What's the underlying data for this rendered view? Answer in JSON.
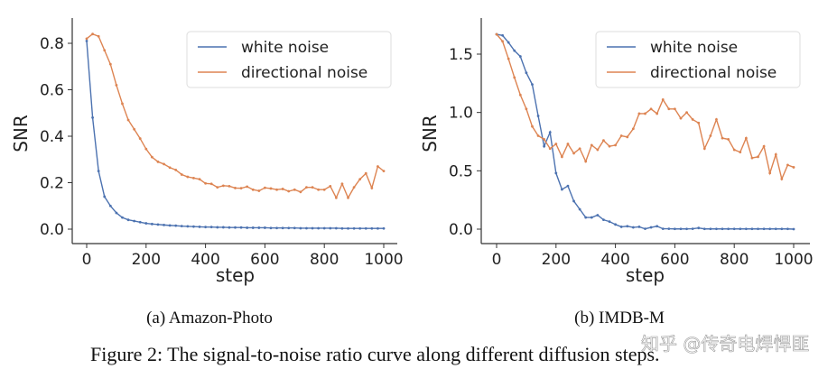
{
  "chart_data": [
    {
      "type": "line",
      "subcaption": "(a) Amazon-Photo",
      "xlabel": "step",
      "ylabel": "SNR",
      "xlim": [
        0,
        1000
      ],
      "ylim": [
        0,
        0.85
      ],
      "xticks": [
        "0",
        "200",
        "400",
        "600",
        "800",
        "1000"
      ],
      "yticks": [
        "0.0",
        "0.2",
        "0.4",
        "0.6",
        "0.8"
      ],
      "legend_position": "top-right",
      "x_step": 20,
      "series": [
        {
          "name": "white noise",
          "color": "#4c72b0",
          "values": [
            0.81,
            0.48,
            0.25,
            0.14,
            0.1,
            0.07,
            0.05,
            0.04,
            0.035,
            0.03,
            0.025,
            0.022,
            0.02,
            0.018,
            0.016,
            0.015,
            0.013,
            0.012,
            0.011,
            0.01,
            0.009,
            0.009,
            0.008,
            0.008,
            0.007,
            0.007,
            0.007,
            0.006,
            0.006,
            0.006,
            0.006,
            0.005,
            0.005,
            0.005,
            0.005,
            0.005,
            0.004,
            0.004,
            0.004,
            0.004,
            0.004,
            0.004,
            0.004,
            0.003,
            0.003,
            0.003,
            0.003,
            0.003,
            0.003,
            0.003,
            0.003
          ]
        },
        {
          "name": "directional noise",
          "color": "#dd8452",
          "values": [
            0.82,
            0.84,
            0.83,
            0.77,
            0.71,
            0.62,
            0.54,
            0.47,
            0.43,
            0.39,
            0.345,
            0.31,
            0.29,
            0.28,
            0.265,
            0.255,
            0.235,
            0.225,
            0.22,
            0.215,
            0.197,
            0.195,
            0.18,
            0.187,
            0.185,
            0.177,
            0.176,
            0.183,
            0.17,
            0.165,
            0.178,
            0.175,
            0.17,
            0.173,
            0.163,
            0.17,
            0.16,
            0.18,
            0.18,
            0.17,
            0.17,
            0.185,
            0.135,
            0.195,
            0.135,
            0.18,
            0.215,
            0.24,
            0.177,
            0.27,
            0.25
          ]
        }
      ]
    },
    {
      "type": "line",
      "subcaption": "(b) IMDB-M",
      "xlabel": "step",
      "ylabel": "SNR",
      "xlim": [
        0,
        1000
      ],
      "ylim": [
        0,
        1.75
      ],
      "xticks": [
        "0",
        "200",
        "400",
        "600",
        "800",
        "1000"
      ],
      "yticks": [
        "0.0",
        "0.5",
        "1.0",
        "1.5"
      ],
      "legend_position": "top-right",
      "x_step": 20,
      "series": [
        {
          "name": "white noise",
          "color": "#4c72b0",
          "values": [
            1.67,
            1.66,
            1.6,
            1.53,
            1.48,
            1.34,
            1.24,
            0.97,
            0.71,
            0.83,
            0.48,
            0.34,
            0.37,
            0.24,
            0.17,
            0.1,
            0.1,
            0.12,
            0.08,
            0.065,
            0.04,
            0.02,
            0.025,
            0.015,
            0.02,
            0.003,
            0.015,
            0.025,
            0.003,
            0.003,
            0.002,
            0.002,
            0.002,
            0.003,
            0.01,
            0.002,
            0.002,
            0.002,
            0.002,
            0.002,
            0.002,
            0.002,
            0.002,
            0.002,
            0.002,
            0.002,
            0.002,
            0.002,
            0.002,
            0.002,
            0.0
          ]
        },
        {
          "name": "directional noise",
          "color": "#dd8452",
          "values": [
            1.67,
            1.61,
            1.46,
            1.3,
            1.15,
            1.03,
            0.88,
            0.8,
            0.77,
            0.69,
            0.73,
            0.62,
            0.73,
            0.65,
            0.69,
            0.58,
            0.72,
            0.68,
            0.76,
            0.71,
            0.72,
            0.8,
            0.79,
            0.86,
            0.99,
            0.99,
            1.03,
            0.99,
            1.11,
            1.03,
            1.03,
            0.95,
            1.0,
            0.94,
            0.91,
            0.69,
            0.8,
            0.94,
            0.78,
            0.77,
            0.68,
            0.66,
            0.78,
            0.61,
            0.62,
            0.71,
            0.48,
            0.64,
            0.43,
            0.55,
            0.53
          ]
        }
      ]
    }
  ],
  "caption": "Figure 2: The signal-to-noise ratio curve along different diffusion steps.",
  "watermark": "知乎 @传奇电焊悍匪"
}
